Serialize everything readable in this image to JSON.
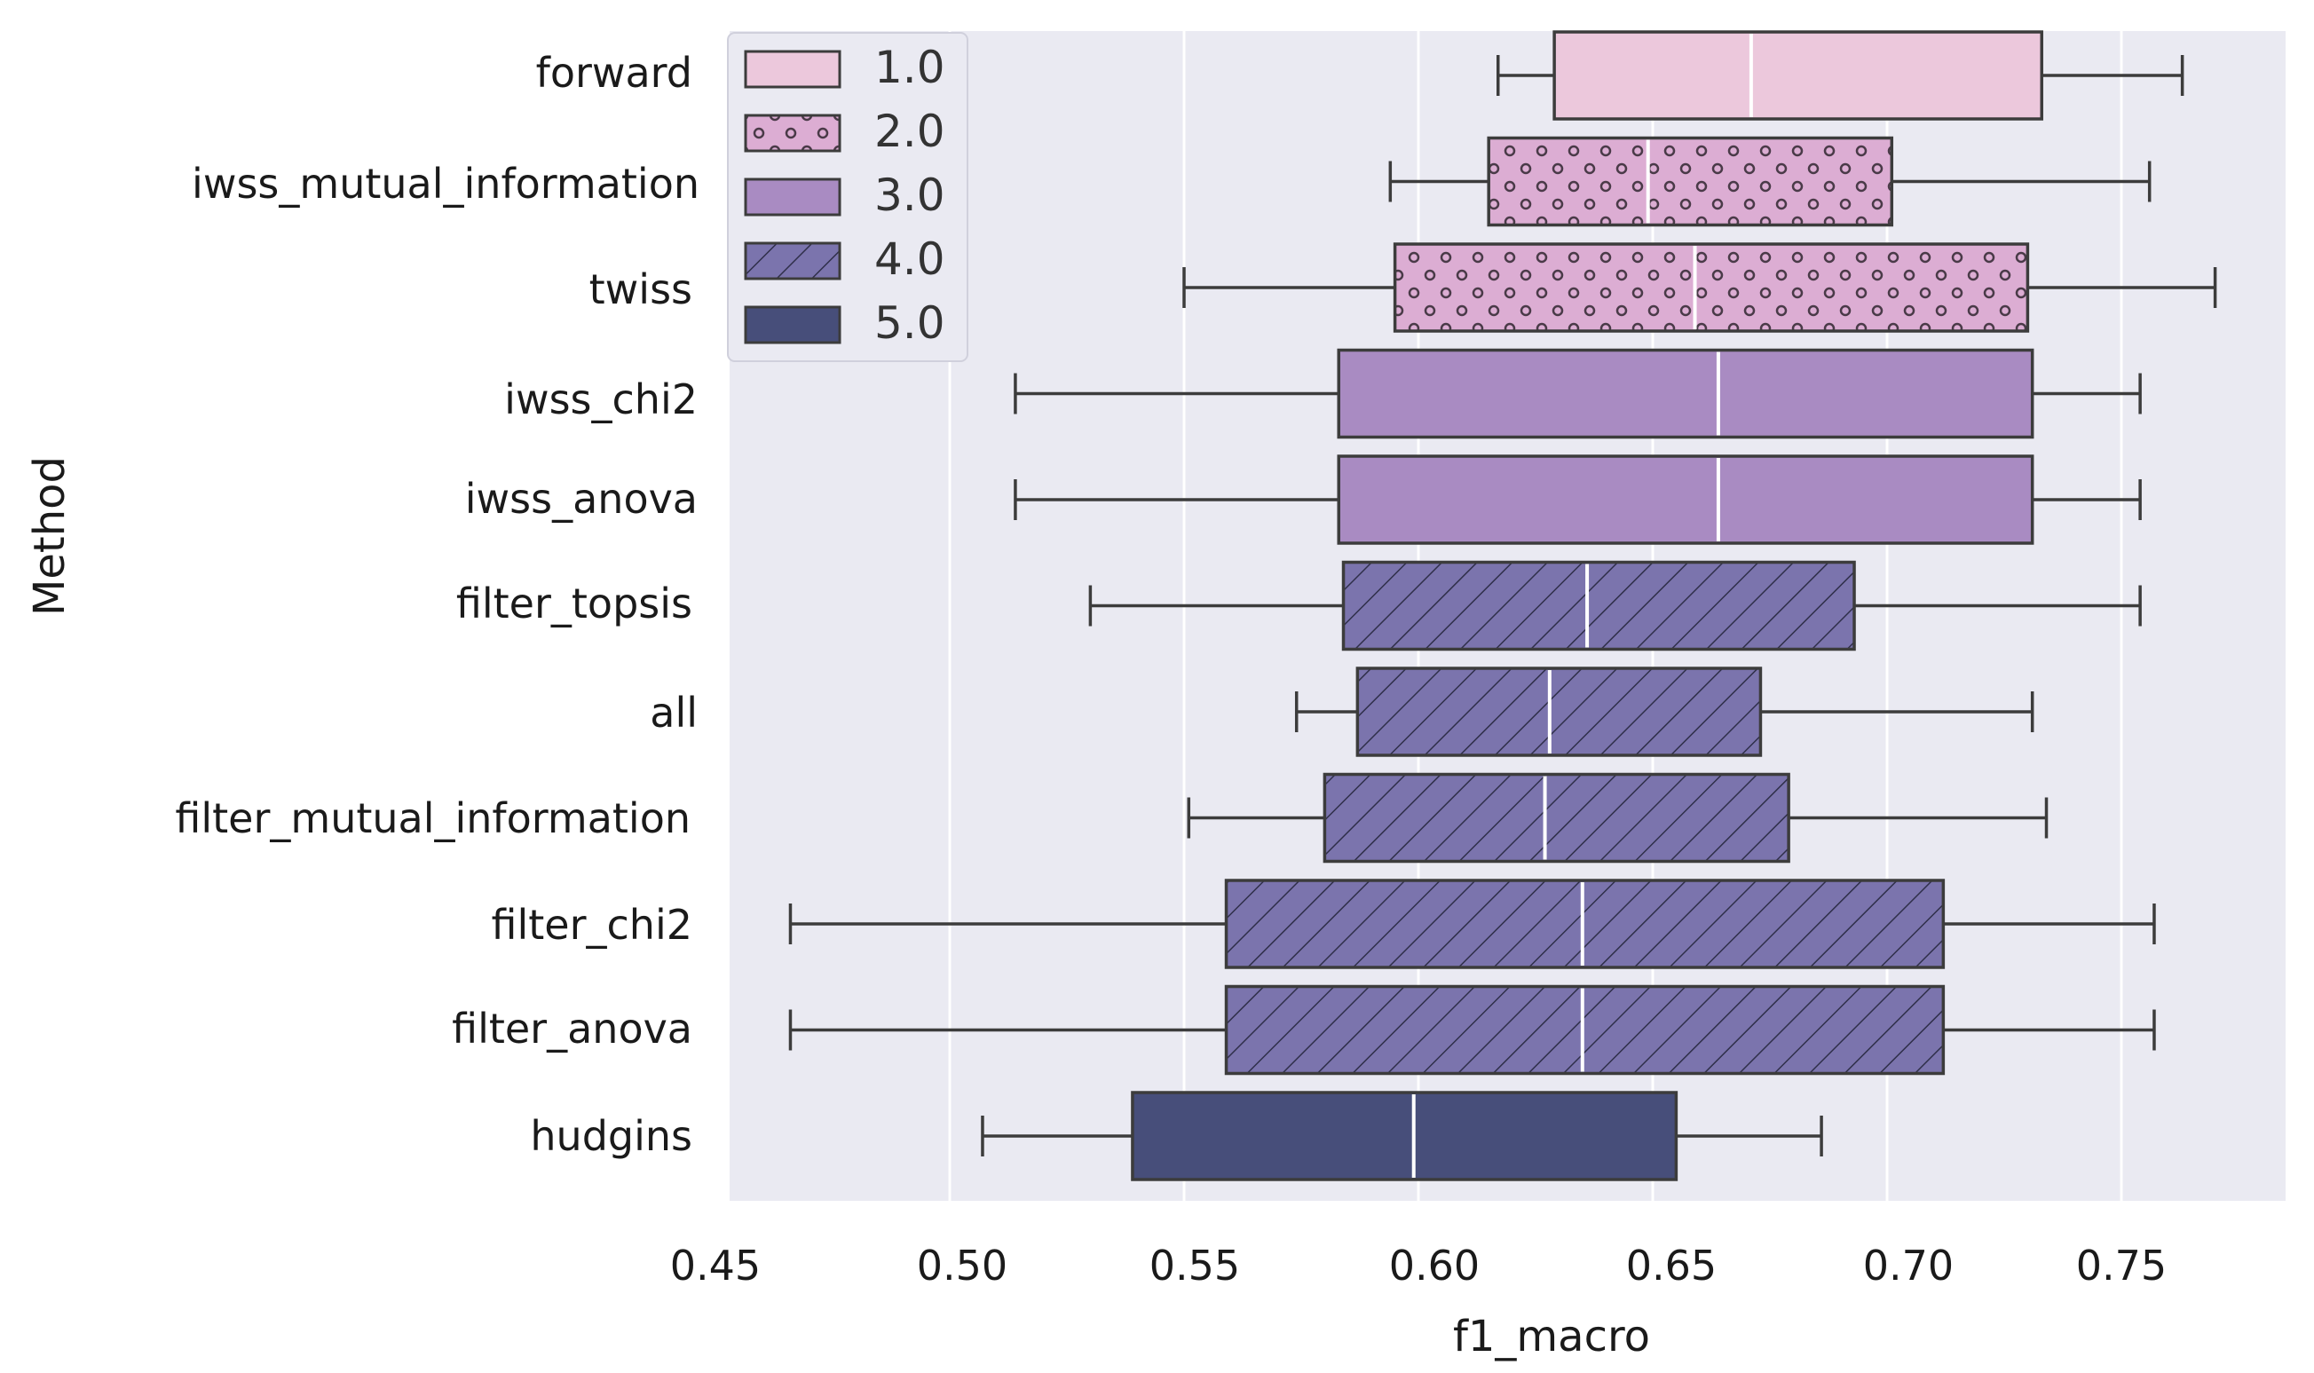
{
  "chart_data": {
    "type": "boxplot",
    "orientation": "horizontal",
    "xlabel": "f1_macro",
    "ylabel": "Method",
    "xlim": [
      0.45,
      0.78
    ],
    "xticks": [
      "0.45",
      "0.50",
      "0.55",
      "0.60",
      "0.65",
      "0.70",
      "0.75"
    ],
    "grid": true,
    "legend_position": "top-left",
    "legend": [
      {
        "label": "1.0",
        "color": "#ecc8dc",
        "pattern": "none"
      },
      {
        "label": "2.0",
        "color": "#dcadd3",
        "pattern": "dots"
      },
      {
        "label": "3.0",
        "color": "#a98bc2",
        "pattern": "none"
      },
      {
        "label": "4.0",
        "color": "#7b74ad",
        "pattern": "hatch"
      },
      {
        "label": "5.0",
        "color": "#474e7a",
        "pattern": "none"
      }
    ],
    "boxes": [
      {
        "method": "forward",
        "group": "1.0",
        "whisker_low": 0.617,
        "q1": 0.629,
        "median": 0.671,
        "q3": 0.733,
        "whisker_high": 0.763
      },
      {
        "method": "iwss_mutual_information",
        "group": "2.0",
        "whisker_low": 0.594,
        "q1": 0.615,
        "median": 0.649,
        "q3": 0.701,
        "whisker_high": 0.756
      },
      {
        "method": "twiss",
        "group": "2.0",
        "whisker_low": 0.55,
        "q1": 0.595,
        "median": 0.659,
        "q3": 0.73,
        "whisker_high": 0.77
      },
      {
        "method": "iwss_chi2",
        "group": "3.0",
        "whisker_low": 0.514,
        "q1": 0.583,
        "median": 0.664,
        "q3": 0.731,
        "whisker_high": 0.754
      },
      {
        "method": "iwss_anova",
        "group": "3.0",
        "whisker_low": 0.514,
        "q1": 0.583,
        "median": 0.664,
        "q3": 0.731,
        "whisker_high": 0.754
      },
      {
        "method": "filter_topsis",
        "group": "4.0",
        "whisker_low": 0.53,
        "q1": 0.584,
        "median": 0.636,
        "q3": 0.693,
        "whisker_high": 0.754
      },
      {
        "method": "all",
        "group": "4.0",
        "whisker_low": 0.574,
        "q1": 0.587,
        "median": 0.628,
        "q3": 0.673,
        "whisker_high": 0.731
      },
      {
        "method": "filter_mutual_information",
        "group": "4.0",
        "whisker_low": 0.551,
        "q1": 0.58,
        "median": 0.627,
        "q3": 0.679,
        "whisker_high": 0.734
      },
      {
        "method": "filter_chi2",
        "group": "4.0",
        "whisker_low": 0.466,
        "q1": 0.559,
        "median": 0.635,
        "q3": 0.712,
        "whisker_high": 0.757
      },
      {
        "method": "filter_anova",
        "group": "4.0",
        "whisker_low": 0.466,
        "q1": 0.559,
        "median": 0.635,
        "q3": 0.712,
        "whisker_high": 0.757
      },
      {
        "method": "hudgins",
        "group": "5.0",
        "whisker_low": 0.507,
        "q1": 0.539,
        "median": 0.599,
        "q3": 0.655,
        "whisker_high": 0.686
      }
    ]
  },
  "colors": {
    "plot_background": "#eaeaf2",
    "grid": "#ffffff",
    "edge": "#3c3c3c",
    "median": "#ffffff"
  }
}
